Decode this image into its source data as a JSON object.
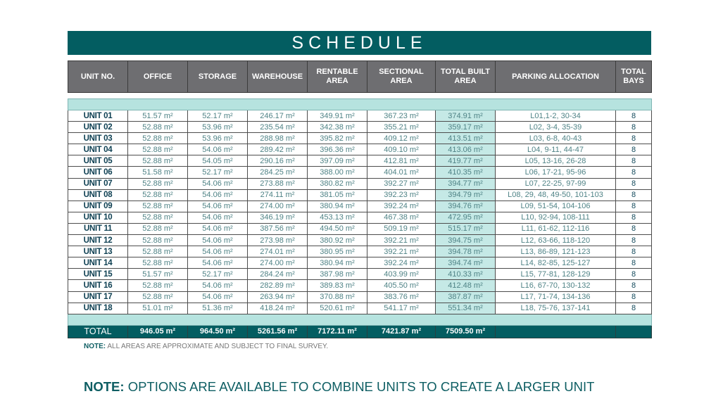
{
  "title": "SCHEDULE",
  "headers": [
    "UNIT NO.",
    "OFFICE",
    "STORAGE",
    "WAREHOUSE",
    "RENTABLE AREA",
    "SECTIONAL AREA",
    "TOTAL BUILT AREA",
    "PARKING ALLOCATION",
    "TOTAL BAYS"
  ],
  "rows": [
    [
      "UNIT 01",
      "51.57 m²",
      "52.17 m²",
      "246.17 m²",
      "349.91 m²",
      "367.23 m²",
      "374.91 m²",
      "L01,1-2, 30-34",
      "8"
    ],
    [
      "UNIT 02",
      "52.88 m²",
      "53.96 m²",
      "235.54 m²",
      "342.38 m²",
      "355.21 m²",
      "359.17 m²",
      "L02, 3-4, 35-39",
      "8"
    ],
    [
      "UNIT 03",
      "52.88 m²",
      "53.96 m²",
      "288.98 m²",
      "395.82 m²",
      "409.12 m²",
      "413.51 m²",
      "L03, 6-8, 40-43",
      "8"
    ],
    [
      "UNIT 04",
      "52.88 m²",
      "54.06 m²",
      "289.42 m²",
      "396.36 m²",
      "409.10 m²",
      "413.06 m²",
      "L04, 9-11, 44-47",
      "8"
    ],
    [
      "UNIT 05",
      "52.88 m²",
      "54.05 m²",
      "290.16 m²",
      "397.09 m²",
      "412.81 m²",
      "419.77 m²",
      "L05, 13-16, 26-28",
      "8"
    ],
    [
      "UNIT 06",
      "51.58 m²",
      "52.17 m²",
      "284.25 m²",
      "388.00 m²",
      "404.01 m²",
      "410.35 m²",
      "L06, 17-21, 95-96",
      "8"
    ],
    [
      "UNIT 07",
      "52.88 m²",
      "54.06 m²",
      "273.88 m²",
      "380.82 m²",
      "392.27 m²",
      "394.77 m²",
      "L07, 22-25, 97-99",
      "8"
    ],
    [
      "UNIT 08",
      "52.88 m²",
      "54.06 m²",
      "274.11 m²",
      "381.05 m²",
      "392.23 m²",
      "394.79 m²",
      "L08, 29, 48, 49-50, 101-103",
      "8"
    ],
    [
      "UNIT 09",
      "52.88 m²",
      "54.06 m²",
      "274.00 m²",
      "380.94 m²",
      "392.24 m²",
      "394.76 m²",
      "L09, 51-54, 104-106",
      "8"
    ],
    [
      "UNIT 10",
      "52.88 m²",
      "54.06 m²",
      "346.19 m²",
      "453.13 m²",
      "467.38 m²",
      "472.95 m²",
      "L10, 92-94, 108-111",
      "8"
    ],
    [
      "UNIT 11",
      "52.88 m²",
      "54.06 m²",
      "387.56 m²",
      "494.50 m²",
      "509.19 m²",
      "515.17 m²",
      "L11, 61-62, 112-116",
      "8"
    ],
    [
      "UNIT 12",
      "52.88 m²",
      "54.06 m²",
      "273.98 m²",
      "380.92 m²",
      "392.21 m²",
      "394.75 m²",
      "L12, 63-66, 118-120",
      "8"
    ],
    [
      "UNIT 13",
      "52.88 m²",
      "54.06 m²",
      "274.01 m²",
      "380.95 m²",
      "392.21 m²",
      "394.78 m²",
      "L13, 86-89, 121-123",
      "8"
    ],
    [
      "UNIT 14",
      "52.88 m²",
      "54.06 m²",
      "274.00 m²",
      "380.94 m²",
      "392.24 m²",
      "394.74 m²",
      "L14, 82-85, 125-127",
      "8"
    ],
    [
      "UNIT 15",
      "51.57 m²",
      "52.17 m²",
      "284.24 m²",
      "387.98 m²",
      "403.99 m²",
      "410.33 m²",
      "L15, 77-81, 128-129",
      "8"
    ],
    [
      "UNIT 16",
      "52.88 m²",
      "54.06 m²",
      "282.89 m²",
      "389.83 m²",
      "405.50 m²",
      "412.48 m²",
      "L16, 67-70, 130-132",
      "8"
    ],
    [
      "UNIT 17",
      "52.88 m²",
      "54.06 m²",
      "263.94 m²",
      "370.88 m²",
      "383.76 m²",
      "387.87 m²",
      "L17, 71-74, 134-136",
      "8"
    ],
    [
      "UNIT 18",
      "51.01 m²",
      "51.36 m²",
      "418.24 m²",
      "520.61 m²",
      "541.17 m²",
      "551.34 m²",
      "L18, 75-76, 137-141",
      "8"
    ]
  ],
  "total": [
    "TOTAL",
    "946.05 m²",
    "964.50 m²",
    "5261.56 m²",
    "7172.11 m²",
    "7421.87 m²",
    "7509.50 m²",
    "",
    ""
  ],
  "note1": {
    "label": "NOTE:",
    "text": " ALL AREAS ARE APPROXIMATE AND SUBJECT TO FINAL SURVEY."
  },
  "note2": {
    "label": "NOTE:",
    "text": " OPTIONS ARE AVAILABLE TO COMBINE UNITS TO CREATE A LARGER UNIT"
  },
  "colors": {
    "brand_teal": "#035d61",
    "header_grey": "#6e6e71",
    "light_teal": "#b6e3df"
  }
}
